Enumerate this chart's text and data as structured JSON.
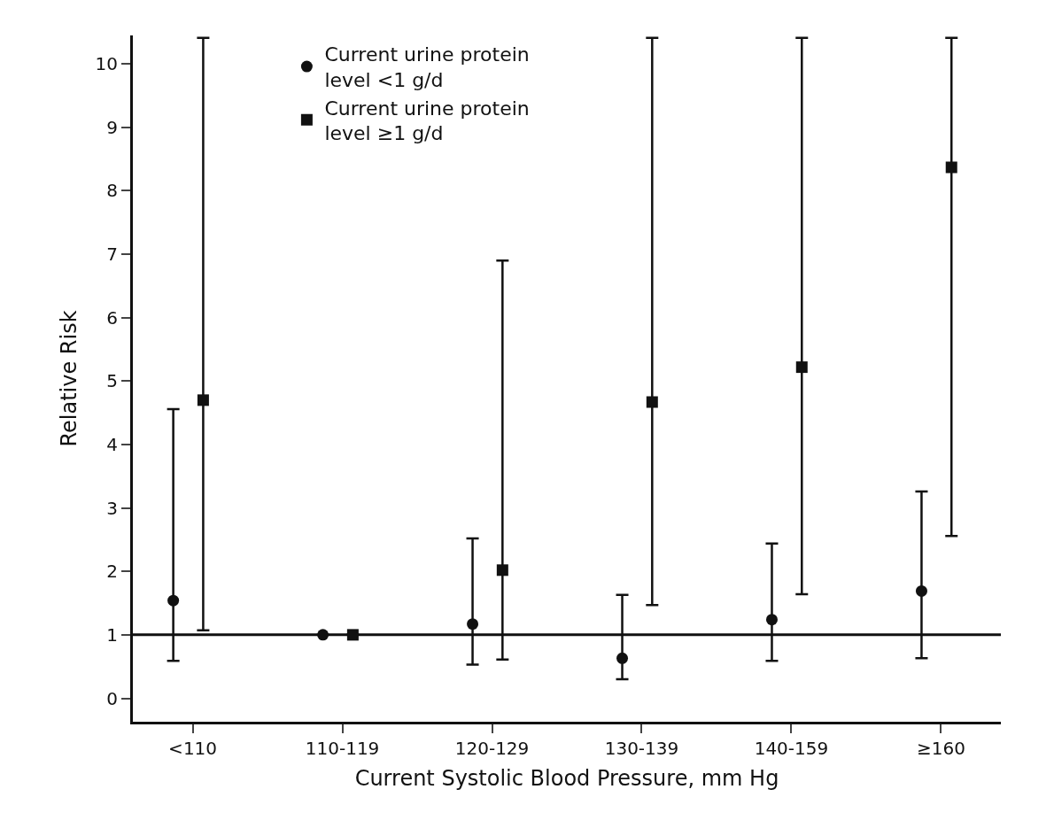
{
  "chart_data": {
    "type": "scatter",
    "xlabel": "Current Systolic Blood Pressure, mm Hg",
    "ylabel": "Relative Risk",
    "categories": [
      "<110",
      "110-119",
      "120-129",
      "130-139",
      "140-159",
      "≥160"
    ],
    "series": [
      {
        "name": "Current urine protein level <1 g/d",
        "color": "#111111",
        "marker": "circle",
        "values": [
          1.54,
          1,
          1.17,
          0.63,
          1.24,
          1.69
        ],
        "errors": [
          [
            0.59,
            4.56
          ],
          null,
          [
            0.53,
            2.52
          ],
          [
            0.3,
            1.63
          ],
          [
            0.59,
            2.44
          ],
          [
            0.63,
            3.26
          ]
        ]
      },
      {
        "name": "Current urine protein level ≥1 g/d",
        "color": "#111111",
        "marker": "square",
        "values": [
          4.7,
          1,
          2.02,
          4.67,
          5.22,
          8.37
        ],
        "errors": [
          [
            1.07,
            10.41
          ],
          null,
          [
            0.61,
            6.9
          ],
          [
            1.47,
            10.41
          ],
          [
            1.64,
            10.41
          ],
          [
            2.56,
            10.41
          ]
        ]
      }
    ],
    "ylim": [
      -0.37,
      10.45
    ],
    "yticks": [
      0,
      1,
      2,
      3,
      4,
      5,
      6,
      7,
      8,
      9,
      10
    ],
    "ref_lines": [
      {
        "axis": "y",
        "value": 1,
        "color": "#111111"
      }
    ],
    "legend": "top left",
    "grid": false
  }
}
